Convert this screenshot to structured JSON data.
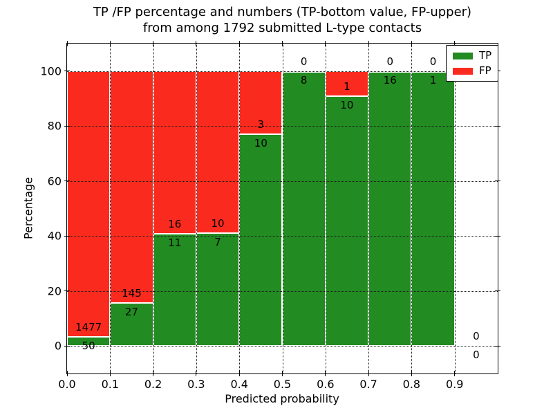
{
  "title": {
    "line1": "TP /FP percentage and numbers (TP-bottom value, FP-upper)",
    "line2": "from among 1792 submitted L-type contacts"
  },
  "axes": {
    "xlabel": "Predicted probability",
    "ylabel": "Percentage",
    "xlim": [
      0.0,
      1.0
    ],
    "ylim": [
      -10,
      110
    ],
    "xticks": [
      {
        "value": 0.0,
        "label": "0.0"
      },
      {
        "value": 0.1,
        "label": "0.1"
      },
      {
        "value": 0.2,
        "label": "0.2"
      },
      {
        "value": 0.3,
        "label": "0.3"
      },
      {
        "value": 0.4,
        "label": "0.4"
      },
      {
        "value": 0.5,
        "label": "0.5"
      },
      {
        "value": 0.6,
        "label": "0.6"
      },
      {
        "value": 0.7,
        "label": "0.7"
      },
      {
        "value": 0.8,
        "label": "0.8"
      },
      {
        "value": 0.9,
        "label": "0.9"
      }
    ],
    "yticks": [
      {
        "value": 0,
        "label": "0"
      },
      {
        "value": 20,
        "label": "20"
      },
      {
        "value": 40,
        "label": "40"
      },
      {
        "value": 60,
        "label": "60"
      },
      {
        "value": 80,
        "label": "80"
      },
      {
        "value": 100,
        "label": "100"
      }
    ]
  },
  "legend": {
    "items": [
      {
        "label": "TP",
        "color": "#228B22"
      },
      {
        "label": "FP",
        "color": "#FA2B1E"
      }
    ]
  },
  "colors": {
    "tp": "#228B22",
    "fp": "#FA2B1E",
    "grid": "#1a1a1a",
    "frame": "#000000",
    "background": "#ffffff"
  },
  "chart_data": {
    "type": "bar",
    "stacked": true,
    "normalized_to_percent": true,
    "title": "TP /FP percentage and numbers (TP-bottom value, FP-upper) from among 1792 submitted L-type contacts",
    "xlabel": "Predicted probability",
    "ylabel": "Percentage",
    "xlim": [
      0.0,
      1.0
    ],
    "ylim": [
      -10,
      110
    ],
    "grid": true,
    "legend_position": "upper right",
    "total_contacts": 1792,
    "bins": [
      {
        "x0": 0.0,
        "x1": 0.1,
        "tp": 50,
        "fp": 1477,
        "tp_pct": 3.27
      },
      {
        "x0": 0.1,
        "x1": 0.2,
        "tp": 27,
        "fp": 145,
        "tp_pct": 15.7
      },
      {
        "x0": 0.2,
        "x1": 0.3,
        "tp": 11,
        "fp": 16,
        "tp_pct": 40.74
      },
      {
        "x0": 0.3,
        "x1": 0.4,
        "tp": 7,
        "fp": 10,
        "tp_pct": 41.18
      },
      {
        "x0": 0.4,
        "x1": 0.5,
        "tp": 10,
        "fp": 3,
        "tp_pct": 76.92
      },
      {
        "x0": 0.5,
        "x1": 0.6,
        "tp": 8,
        "fp": 0,
        "tp_pct": 100
      },
      {
        "x0": 0.6,
        "x1": 0.7,
        "tp": 10,
        "fp": 1,
        "tp_pct": 90.91
      },
      {
        "x0": 0.7,
        "x1": 0.8,
        "tp": 16,
        "fp": 0,
        "tp_pct": 100
      },
      {
        "x0": 0.8,
        "x1": 0.9,
        "tp": 1,
        "fp": 0,
        "tp_pct": 100
      },
      {
        "x0": 0.9,
        "x1": 1.0,
        "tp": 0,
        "fp": 0,
        "tp_pct": null
      }
    ],
    "series": [
      {
        "name": "TP",
        "color": "#228B22",
        "counts": [
          50,
          27,
          11,
          7,
          10,
          8,
          10,
          16,
          1,
          0
        ]
      },
      {
        "name": "FP",
        "color": "#FA2B1E",
        "counts": [
          1477,
          145,
          16,
          10,
          3,
          0,
          1,
          0,
          0,
          0
        ]
      }
    ]
  }
}
